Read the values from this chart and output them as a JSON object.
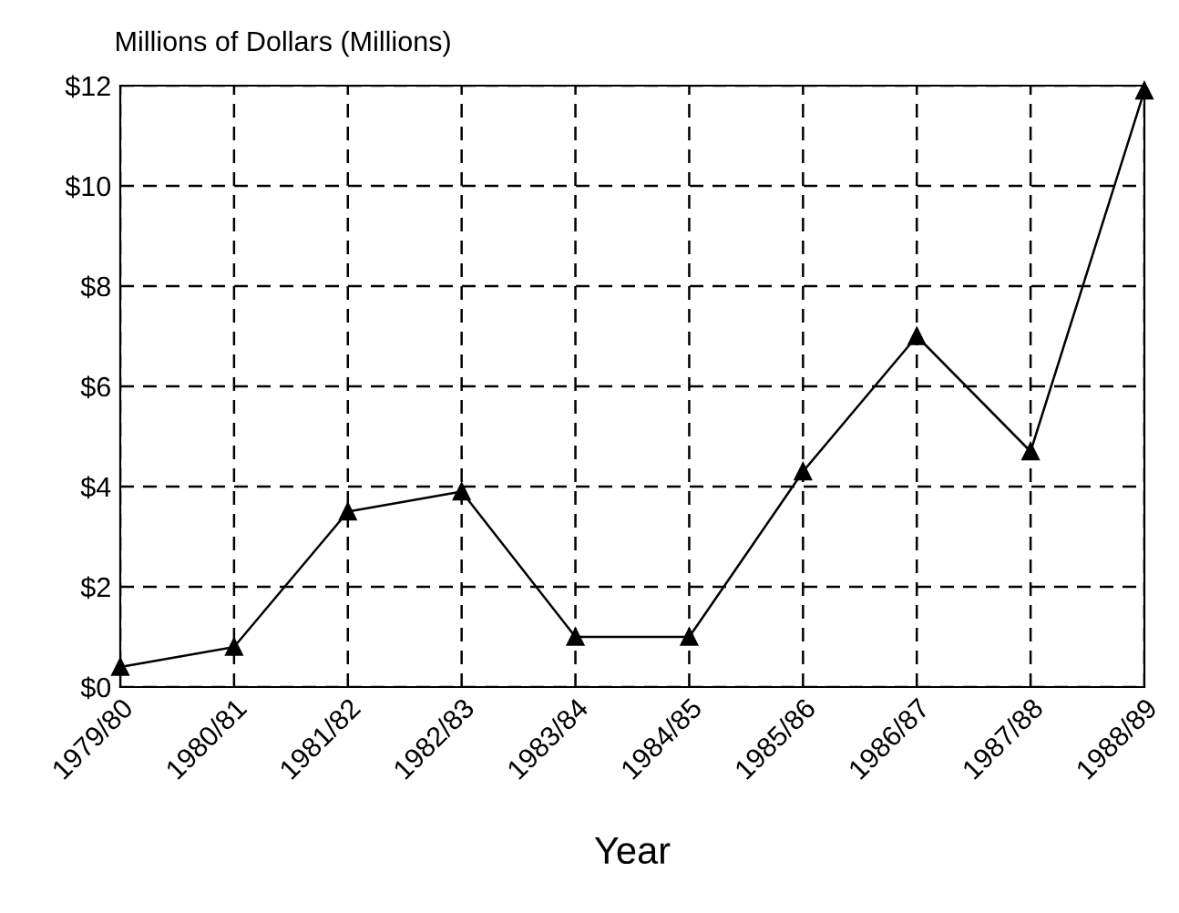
{
  "chart_data": {
    "type": "line",
    "ylabel": "Millions of Dollars (Millions)",
    "xlabel": "Year",
    "categories": [
      "1979/80",
      "1980/81",
      "1981/82",
      "1982/83",
      "1983/84",
      "1984/85",
      "1985/86",
      "1986/87",
      "1987/88",
      "1988/89"
    ],
    "series": [
      {
        "color": "#000000",
        "values": [
          0.4,
          0.8,
          3.5,
          3.9,
          1.0,
          1.0,
          4.3,
          7.0,
          4.7,
          11.9
        ]
      }
    ],
    "ylim": [
      0,
      12
    ],
    "yticks": [
      {
        "value": 0,
        "label": "$0"
      },
      {
        "value": 2,
        "label": "$2"
      },
      {
        "value": 4,
        "label": "$4"
      },
      {
        "value": 6,
        "label": "$6"
      },
      {
        "value": 8,
        "label": "$8"
      },
      {
        "value": 10,
        "label": "$10"
      },
      {
        "value": 12,
        "label": "$12"
      }
    ],
    "grid": true,
    "marker": "triangle",
    "line_style": "solid"
  }
}
